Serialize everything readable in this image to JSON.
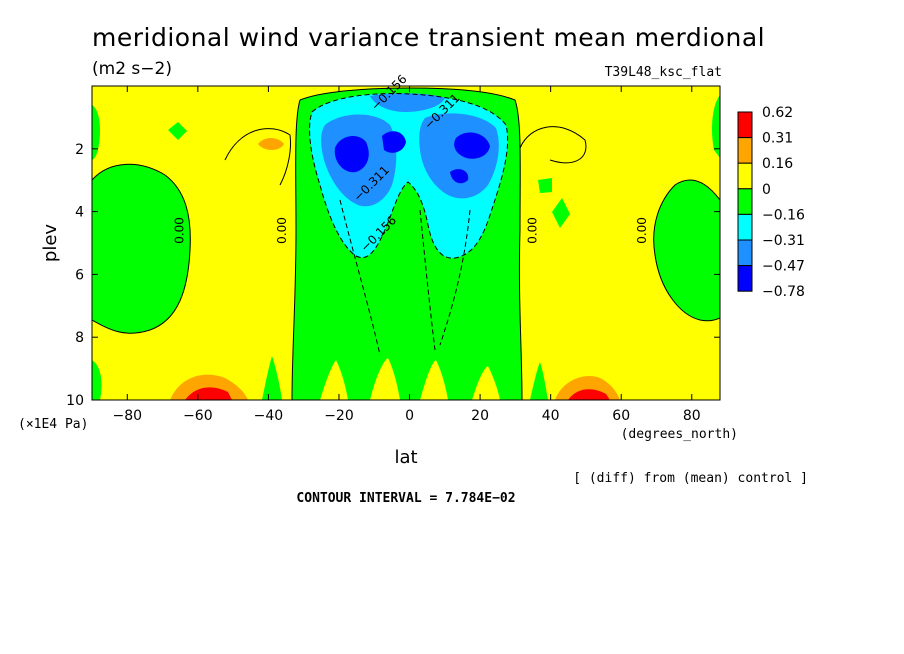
{
  "chart_data": {
    "type": "heatmap",
    "title": "meridional wind variance transient mean merdional",
    "units": "(m2 s−2)",
    "experiment": "T39L48_ksc_flat",
    "xlabel": "lat",
    "x_units": "(degrees_north)",
    "ylabel": "plev",
    "y_units": "(×1E4 Pa)",
    "xlim": [
      -90,
      88
    ],
    "ylim": [
      0,
      10
    ],
    "y_inverted": true,
    "x_ticks": [
      -80,
      -60,
      -40,
      -20,
      0,
      20,
      40,
      60,
      80
    ],
    "x_tick_labels": [
      "−80",
      "−60",
      "−40",
      "−20",
      "0",
      "20",
      "40",
      "60",
      "80"
    ],
    "y_ticks": [
      2,
      4,
      6,
      8,
      10
    ],
    "y_tick_labels": [
      "2",
      "4",
      "6",
      "8",
      "10"
    ],
    "legend": {
      "position": "right",
      "levels": [
        "0.62",
        "0.31",
        "0.16",
        "0",
        "−0.16",
        "−0.31",
        "−0.47",
        "−0.78"
      ],
      "colors": [
        "#ff0000",
        "#ffa500",
        "#ffff00",
        "#00ff00",
        "#00ffff",
        "#1e90ff",
        "#0000ff"
      ]
    },
    "contour_labels": [
      {
        "text": "0.00",
        "lat": -64,
        "plev": 4.6
      },
      {
        "text": "0.00",
        "lat": -35,
        "plev": 4.6
      },
      {
        "text": "0.00",
        "lat": 36,
        "plev": 4.6
      },
      {
        "text": "0.00",
        "lat": 67,
        "plev": 4.6
      },
      {
        "text": "−0.311",
        "lat": 10,
        "plev": 0.9
      },
      {
        "text": "−0.311",
        "lat": -10,
        "plev": 3.2
      },
      {
        "text": "−0.156",
        "lat": -8,
        "plev": 4.8
      },
      {
        "text": "−0.156",
        "lat": -5,
        "plev": 0.3
      }
    ],
    "footer_note": "[ (diff) from (mean) control ]",
    "contour_interval": "CONTOUR INTERVAL = 7.784E−02"
  }
}
